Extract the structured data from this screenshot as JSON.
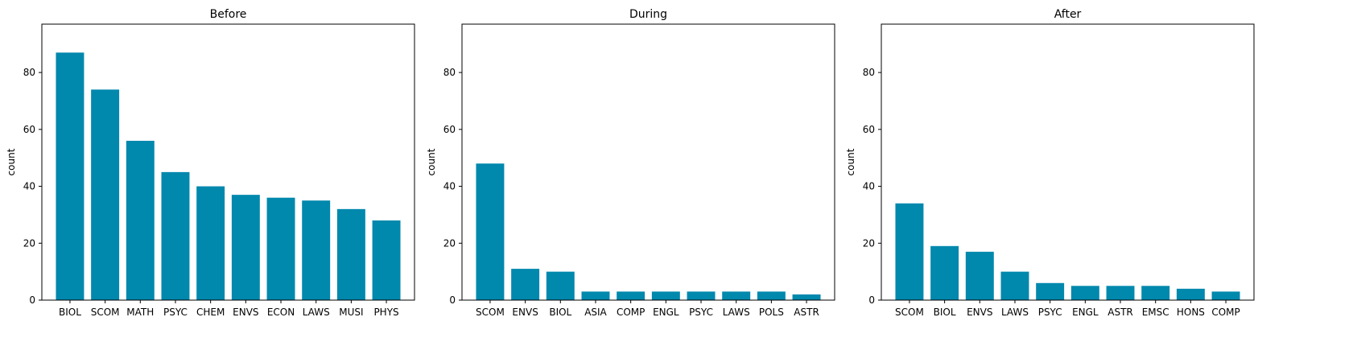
{
  "colors": {
    "bar": "#0088ad",
    "axis": "#000000",
    "background": "#ffffff"
  },
  "chart_data": [
    {
      "type": "bar",
      "title": "Before",
      "xlabel": "",
      "ylabel": "count",
      "ylim": [
        0,
        97
      ],
      "yticks": [
        0,
        20,
        40,
        60,
        80
      ],
      "categories": [
        "BIOL",
        "SCOM",
        "MATH",
        "PSYC",
        "CHEM",
        "ENVS",
        "ECON",
        "LAWS",
        "MUSI",
        "PHYS"
      ],
      "values": [
        87,
        74,
        56,
        45,
        40,
        37,
        36,
        35,
        32,
        28
      ]
    },
    {
      "type": "bar",
      "title": "During",
      "xlabel": "",
      "ylabel": "count",
      "ylim": [
        0,
        97
      ],
      "yticks": [
        0,
        20,
        40,
        60,
        80
      ],
      "categories": [
        "SCOM",
        "ENVS",
        "BIOL",
        "ASIA",
        "COMP",
        "ENGL",
        "PSYC",
        "LAWS",
        "POLS",
        "ASTR"
      ],
      "values": [
        48,
        11,
        10,
        3,
        3,
        3,
        3,
        3,
        3,
        2
      ]
    },
    {
      "type": "bar",
      "title": "After",
      "xlabel": "",
      "ylabel": "count",
      "ylim": [
        0,
        97
      ],
      "yticks": [
        0,
        20,
        40,
        60,
        80
      ],
      "categories": [
        "SCOM",
        "BIOL",
        "ENVS",
        "LAWS",
        "PSYC",
        "ENGL",
        "ASTR",
        "EMSC",
        "HONS",
        "COMP"
      ],
      "values": [
        34,
        19,
        17,
        10,
        6,
        5,
        5,
        5,
        4,
        3
      ]
    }
  ]
}
